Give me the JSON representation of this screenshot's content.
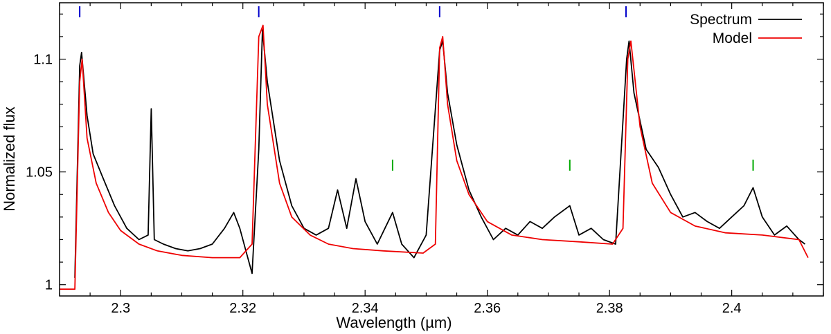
{
  "chart_data": {
    "type": "line",
    "xlabel": "Wavelength (µm)",
    "ylabel": "Normalized flux",
    "xlim": [
      2.29,
      2.415
    ],
    "ylim": [
      0.995,
      1.125
    ],
    "x_ticks": [
      2.3,
      2.32,
      2.34,
      2.36,
      2.38,
      2.4
    ],
    "x_tick_labels": [
      "2.3",
      "2.32",
      "2.34",
      "2.36",
      "2.38",
      "2.4"
    ],
    "y_ticks": [
      1.0,
      1.05,
      1.1
    ],
    "y_tick_labels": [
      "1",
      "1.05",
      "1.1"
    ],
    "legend_position": "top-right",
    "series": [
      {
        "name": "Spectrum",
        "color": "#000000",
        "x": [
          2.2925,
          2.2933,
          2.2936,
          2.2945,
          2.2955,
          2.297,
          2.299,
          2.301,
          2.303,
          2.3045,
          2.305,
          2.3055,
          2.307,
          2.309,
          2.311,
          2.313,
          2.315,
          2.317,
          2.3185,
          2.3195,
          2.3205,
          2.3215,
          2.3226,
          2.3232,
          2.324,
          2.326,
          2.328,
          2.33,
          2.332,
          2.334,
          2.3355,
          2.337,
          2.3385,
          2.34,
          2.342,
          2.3445,
          2.346,
          2.348,
          2.35,
          2.3522,
          2.3527,
          2.3535,
          2.355,
          2.357,
          2.359,
          2.361,
          2.363,
          2.365,
          2.367,
          2.369,
          2.371,
          2.3735,
          2.375,
          2.377,
          2.379,
          2.381,
          2.3828,
          2.3832,
          2.384,
          2.386,
          2.388,
          2.39,
          2.392,
          2.394,
          2.396,
          2.398,
          2.4,
          2.402,
          2.4035,
          2.405,
          2.407,
          2.409,
          2.411,
          2.412
        ],
        "y": [
          1.003,
          1.097,
          1.103,
          1.075,
          1.058,
          1.048,
          1.035,
          1.025,
          1.02,
          1.022,
          1.078,
          1.02,
          1.018,
          1.016,
          1.015,
          1.016,
          1.018,
          1.025,
          1.032,
          1.025,
          1.015,
          1.005,
          1.06,
          1.113,
          1.09,
          1.055,
          1.035,
          1.025,
          1.022,
          1.025,
          1.042,
          1.025,
          1.047,
          1.028,
          1.018,
          1.032,
          1.018,
          1.012,
          1.022,
          1.104,
          1.108,
          1.085,
          1.062,
          1.042,
          1.03,
          1.02,
          1.025,
          1.022,
          1.028,
          1.025,
          1.03,
          1.035,
          1.022,
          1.025,
          1.02,
          1.018,
          1.1,
          1.108,
          1.085,
          1.06,
          1.052,
          1.04,
          1.03,
          1.032,
          1.028,
          1.025,
          1.03,
          1.035,
          1.043,
          1.03,
          1.022,
          1.026,
          1.02,
          1.018
        ]
      },
      {
        "name": "Model",
        "color": "#ee0000",
        "x": [
          2.29,
          2.2925,
          2.2933,
          2.2937,
          2.2945,
          2.296,
          2.298,
          2.3,
          2.303,
          2.306,
          2.31,
          2.315,
          2.3195,
          2.3215,
          2.3226,
          2.3233,
          2.324,
          2.326,
          2.328,
          2.331,
          2.334,
          2.338,
          2.343,
          2.3495,
          2.3515,
          2.3522,
          2.3527,
          2.3535,
          2.355,
          2.357,
          2.36,
          2.364,
          2.369,
          2.375,
          2.3805,
          2.3822,
          2.383,
          2.3835,
          2.385,
          2.387,
          2.39,
          2.394,
          2.399,
          2.405,
          2.411,
          2.4125
        ],
        "y": [
          0.998,
          0.998,
          1.09,
          1.1,
          1.065,
          1.045,
          1.032,
          1.024,
          1.018,
          1.015,
          1.013,
          1.012,
          1.012,
          1.018,
          1.11,
          1.115,
          1.08,
          1.045,
          1.03,
          1.022,
          1.018,
          1.016,
          1.015,
          1.014,
          1.018,
          1.105,
          1.11,
          1.08,
          1.055,
          1.04,
          1.028,
          1.022,
          1.02,
          1.019,
          1.018,
          1.025,
          1.1,
          1.108,
          1.07,
          1.045,
          1.032,
          1.026,
          1.023,
          1.022,
          1.02,
          1.012
        ]
      }
    ],
    "line_markers": [
      {
        "group": "blue",
        "color": "#0000cc",
        "x": [
          2.2933,
          2.3226,
          2.3522,
          2.3827
        ],
        "y": 1.121
      },
      {
        "group": "green",
        "color": "#00aa00",
        "x": [
          2.3445,
          2.3735,
          2.4035
        ],
        "y": 1.053
      }
    ]
  }
}
